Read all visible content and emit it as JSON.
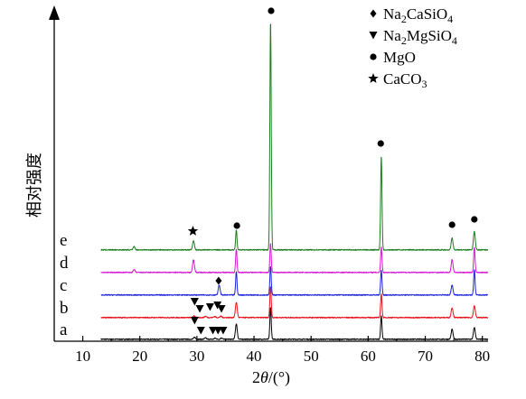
{
  "chart_data": {
    "type": "line",
    "title": "",
    "xlabel_parts": [
      "2",
      "θ",
      "/(°)"
    ],
    "ylabel": "相对强度",
    "xlim": [
      5,
      81
    ],
    "xticks": [
      10,
      20,
      30,
      40,
      50,
      60,
      70,
      80
    ],
    "grid": false,
    "legend_placement": "top-right",
    "legend": [
      {
        "marker": "diamond",
        "phase": "Na2CaSiO4",
        "parts": [
          [
            "Na",
            ""
          ],
          [
            "2",
            "sub"
          ],
          [
            "CaSiO",
            ""
          ],
          [
            "4",
            "sub"
          ]
        ]
      },
      {
        "marker": "triangle-down",
        "phase": "Na2MgSiO4",
        "parts": [
          [
            "Na",
            ""
          ],
          [
            "2",
            "sub"
          ],
          [
            "MgSiO",
            ""
          ],
          [
            "4",
            "sub"
          ]
        ]
      },
      {
        "marker": "circle",
        "phase": "MgO",
        "parts": [
          [
            "MgO",
            ""
          ]
        ]
      },
      {
        "marker": "star",
        "phase": "CaCO3",
        "parts": [
          [
            "CaCO",
            ""
          ],
          [
            "3",
            "sub"
          ]
        ]
      }
    ],
    "series": [
      {
        "name": "a",
        "color": "#000000",
        "peaks": [
          [
            29.6,
            2.2
          ],
          [
            31.5,
            1.4
          ],
          [
            33.2,
            1.2
          ],
          [
            34.3,
            1.5
          ],
          [
            36.9,
            17
          ],
          [
            42.9,
            35
          ],
          [
            62.3,
            26
          ],
          [
            74.7,
            11
          ],
          [
            78.6,
            13
          ]
        ],
        "markers": [
          {
            "type": "triangle-down",
            "x": [
              29.6,
              30.7,
              32.8,
              33.7,
              34.6
            ]
          }
        ]
      },
      {
        "name": "b",
        "color": "#e8101a",
        "peaks": [
          [
            29.5,
            2.0
          ],
          [
            31.5,
            1.4
          ],
          [
            33.1,
            1.2
          ],
          [
            34.2,
            1.4
          ],
          [
            36.9,
            17
          ],
          [
            42.9,
            35
          ],
          [
            62.3,
            26
          ],
          [
            74.7,
            11
          ],
          [
            78.6,
            13
          ]
        ],
        "markers": [
          {
            "type": "triangle-down",
            "x": [
              29.6,
              30.5,
              32.3,
              33.6,
              34.3
            ]
          }
        ]
      },
      {
        "name": "c",
        "color": "#1a22d6",
        "peaks": [
          [
            33.9,
            11
          ],
          [
            36.9,
            26
          ],
          [
            42.9,
            32
          ],
          [
            62.3,
            28
          ],
          [
            74.7,
            11
          ],
          [
            78.6,
            28
          ]
        ],
        "markers": [
          {
            "type": "diamond",
            "x": [
              33.8
            ]
          }
        ]
      },
      {
        "name": "d",
        "color": "#d318d3",
        "peaks": [
          [
            19.0,
            3
          ],
          [
            29.4,
            14
          ],
          [
            36.9,
            26
          ],
          [
            42.9,
            32
          ],
          [
            62.3,
            28
          ],
          [
            74.7,
            14
          ],
          [
            78.6,
            28
          ]
        ],
        "markers": []
      },
      {
        "name": "e",
        "color": "#1c7d1c",
        "peaks": [
          [
            19.0,
            3.5
          ],
          [
            29.4,
            10
          ],
          [
            36.9,
            22
          ],
          [
            42.9,
            253
          ],
          [
            62.3,
            104
          ],
          [
            74.7,
            13
          ],
          [
            78.6,
            20
          ]
        ],
        "markers": [
          {
            "type": "star",
            "x": [
              29.3
            ]
          },
          {
            "type": "circle",
            "x": [
              37.0,
              43.0,
              62.2,
              74.7,
              78.6
            ]
          }
        ]
      }
    ]
  }
}
